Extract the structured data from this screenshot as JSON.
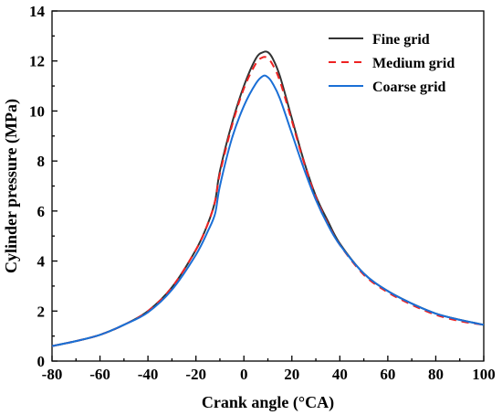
{
  "chart_data": {
    "type": "line",
    "xlabel": "Crank angle (°CA)",
    "ylabel": "Cylinder pressure (MPa)",
    "xlim": [
      -80,
      100
    ],
    "ylim": [
      0,
      14
    ],
    "xticks": [
      -80,
      -60,
      -40,
      -20,
      0,
      20,
      40,
      60,
      80,
      100
    ],
    "yticks": [
      0,
      2,
      4,
      6,
      8,
      10,
      12,
      14
    ],
    "grid": false,
    "legend_position": "top-right",
    "series": [
      {
        "name": "Fine grid",
        "color": "#333333",
        "dash": "solid",
        "points": [
          [
            -80,
            0.6
          ],
          [
            -70,
            0.8
          ],
          [
            -60,
            1.05
          ],
          [
            -50,
            1.45
          ],
          [
            -40,
            2.0
          ],
          [
            -30,
            2.95
          ],
          [
            -20,
            4.45
          ],
          [
            -15,
            5.5
          ],
          [
            -12,
            6.4
          ],
          [
            -10,
            7.6
          ],
          [
            -5,
            9.5
          ],
          [
            0,
            11.0
          ],
          [
            5,
            12.1
          ],
          [
            8,
            12.35
          ],
          [
            10,
            12.35
          ],
          [
            12,
            12.1
          ],
          [
            15,
            11.4
          ],
          [
            20,
            9.7
          ],
          [
            25,
            8.0
          ],
          [
            30,
            6.6
          ],
          [
            35,
            5.6
          ],
          [
            40,
            4.7
          ],
          [
            50,
            3.5
          ],
          [
            60,
            2.8
          ],
          [
            70,
            2.3
          ],
          [
            80,
            1.9
          ],
          [
            90,
            1.65
          ],
          [
            100,
            1.45
          ]
        ]
      },
      {
        "name": "Medium grid",
        "color": "#ee2222",
        "dash": "dashed",
        "points": [
          [
            -80,
            0.6
          ],
          [
            -70,
            0.8
          ],
          [
            -60,
            1.05
          ],
          [
            -50,
            1.45
          ],
          [
            -40,
            2.0
          ],
          [
            -30,
            2.95
          ],
          [
            -20,
            4.45
          ],
          [
            -15,
            5.5
          ],
          [
            -12,
            6.4
          ],
          [
            -10,
            7.5
          ],
          [
            -5,
            9.4
          ],
          [
            0,
            10.9
          ],
          [
            5,
            11.9
          ],
          [
            8,
            12.15
          ],
          [
            10,
            12.1
          ],
          [
            12,
            11.85
          ],
          [
            15,
            11.2
          ],
          [
            20,
            9.6
          ],
          [
            25,
            7.95
          ],
          [
            30,
            6.55
          ],
          [
            35,
            5.5
          ],
          [
            40,
            4.65
          ],
          [
            50,
            3.45
          ],
          [
            60,
            2.75
          ],
          [
            70,
            2.25
          ],
          [
            80,
            1.85
          ],
          [
            90,
            1.6
          ],
          [
            100,
            1.45
          ]
        ]
      },
      {
        "name": "Coarse grid",
        "color": "#1a6fd6",
        "dash": "solid",
        "points": [
          [
            -80,
            0.6
          ],
          [
            -70,
            0.8
          ],
          [
            -60,
            1.05
          ],
          [
            -50,
            1.45
          ],
          [
            -40,
            1.95
          ],
          [
            -30,
            2.85
          ],
          [
            -20,
            4.25
          ],
          [
            -15,
            5.2
          ],
          [
            -12,
            5.9
          ],
          [
            -10,
            7.0
          ],
          [
            -5,
            8.9
          ],
          [
            0,
            10.2
          ],
          [
            5,
            11.1
          ],
          [
            8,
            11.4
          ],
          [
            10,
            11.35
          ],
          [
            12,
            11.1
          ],
          [
            15,
            10.5
          ],
          [
            20,
            9.1
          ],
          [
            25,
            7.7
          ],
          [
            30,
            6.45
          ],
          [
            35,
            5.45
          ],
          [
            40,
            4.65
          ],
          [
            50,
            3.5
          ],
          [
            60,
            2.8
          ],
          [
            70,
            2.3
          ],
          [
            80,
            1.9
          ],
          [
            90,
            1.65
          ],
          [
            100,
            1.45
          ]
        ]
      }
    ]
  }
}
